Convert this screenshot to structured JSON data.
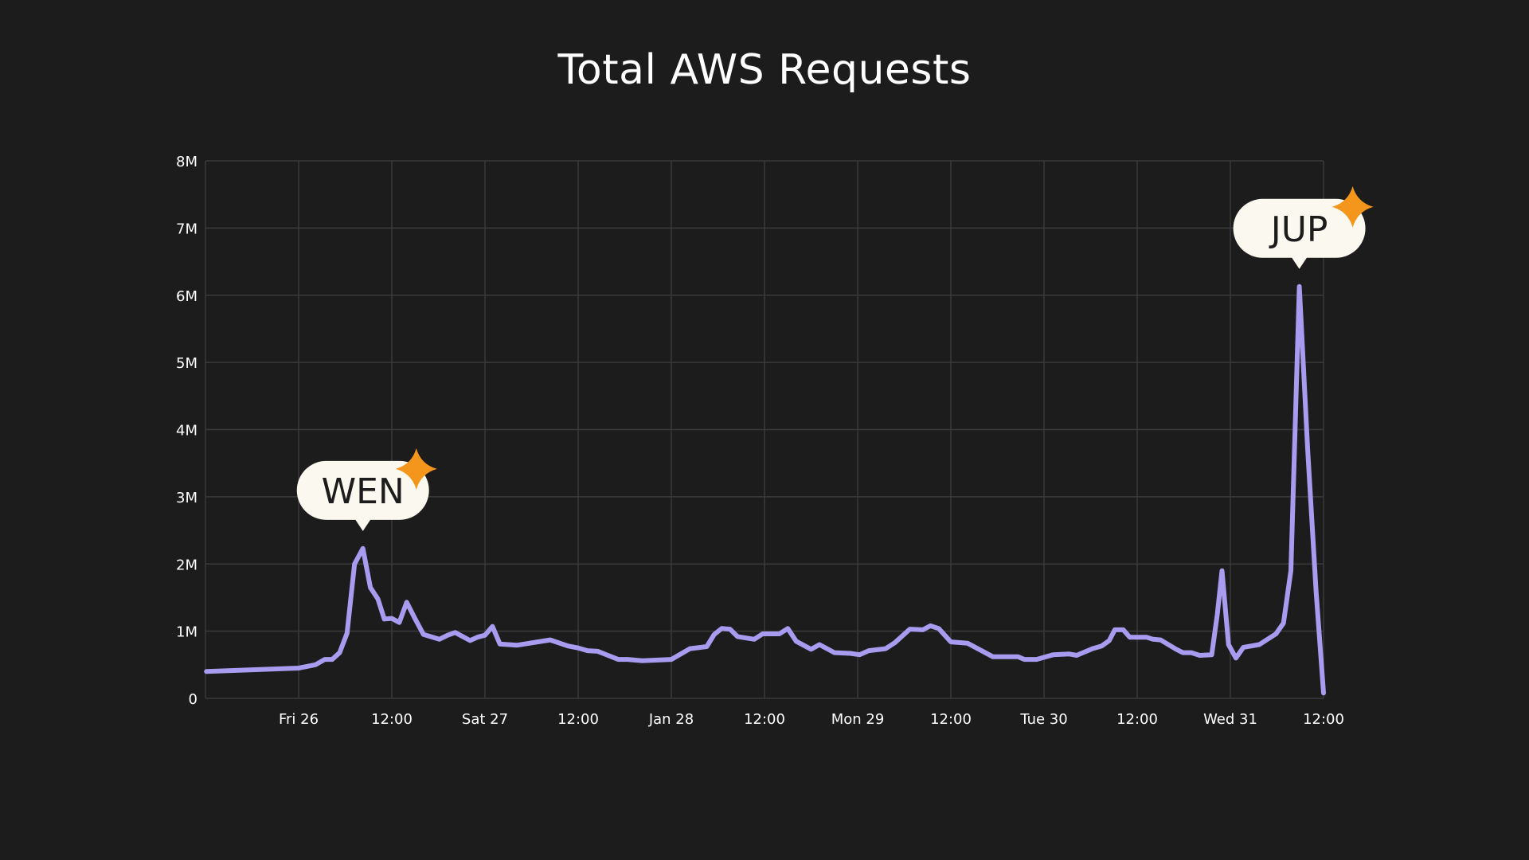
{
  "chart_data": {
    "type": "line",
    "title": "Total AWS Requests",
    "xlabel": "",
    "ylabel": "",
    "ylim": [
      0,
      8000000
    ],
    "xlim": [
      0,
      120
    ],
    "grid": true,
    "colors": {
      "background": "#1c1c1c",
      "line": "#a89cf0",
      "grid": "#3a3a3a",
      "callout_bg": "#fbf8ef",
      "sparkle": "#f5961c"
    },
    "y_ticks": [
      {
        "value": 0,
        "label": "0"
      },
      {
        "value": 1000000,
        "label": "1M"
      },
      {
        "value": 2000000,
        "label": "2M"
      },
      {
        "value": 3000000,
        "label": "3M"
      },
      {
        "value": 4000000,
        "label": "4M"
      },
      {
        "value": 5000000,
        "label": "5M"
      },
      {
        "value": 6000000,
        "label": "6M"
      },
      {
        "value": 7000000,
        "label": "7M"
      },
      {
        "value": 8000000,
        "label": "8M"
      }
    ],
    "x_ticks": [
      {
        "value": 10,
        "label": "Fri 26"
      },
      {
        "value": 20,
        "label": "12:00"
      },
      {
        "value": 30,
        "label": "Sat 27"
      },
      {
        "value": 40,
        "label": "12:00"
      },
      {
        "value": 50,
        "label": "Jan 28"
      },
      {
        "value": 60,
        "label": "12:00"
      },
      {
        "value": 70,
        "label": "Mon 29"
      },
      {
        "value": 80,
        "label": "12:00"
      },
      {
        "value": 90,
        "label": "Tue 30"
      },
      {
        "value": 100,
        "label": "12:00"
      },
      {
        "value": 110,
        "label": "Wed 31"
      },
      {
        "value": 120,
        "label": "12:00"
      }
    ],
    "series": [
      {
        "name": "Total AWS Requests",
        "points": [
          [
            0.1,
            400000
          ],
          [
            10.0,
            450000
          ],
          [
            11.8,
            500000
          ],
          [
            12.8,
            580000
          ],
          [
            13.6,
            580000
          ],
          [
            14.4,
            680000
          ],
          [
            15.2,
            970000
          ],
          [
            16.0,
            2000000
          ],
          [
            16.9,
            2230000
          ],
          [
            17.7,
            1650000
          ],
          [
            18.5,
            1480000
          ],
          [
            19.2,
            1180000
          ],
          [
            20.0,
            1190000
          ],
          [
            20.8,
            1130000
          ],
          [
            21.6,
            1430000
          ],
          [
            22.4,
            1210000
          ],
          [
            23.4,
            950000
          ],
          [
            25.1,
            880000
          ],
          [
            26.0,
            940000
          ],
          [
            26.8,
            980000
          ],
          [
            28.4,
            860000
          ],
          [
            29.2,
            910000
          ],
          [
            30.0,
            940000
          ],
          [
            30.8,
            1070000
          ],
          [
            31.6,
            810000
          ],
          [
            33.4,
            790000
          ],
          [
            37.0,
            870000
          ],
          [
            38.9,
            780000
          ],
          [
            40.0,
            750000
          ],
          [
            41.0,
            710000
          ],
          [
            42.1,
            700000
          ],
          [
            44.3,
            580000
          ],
          [
            45.3,
            580000
          ],
          [
            46.9,
            560000
          ],
          [
            50.0,
            580000
          ],
          [
            52.0,
            740000
          ],
          [
            53.8,
            770000
          ],
          [
            54.6,
            950000
          ],
          [
            55.4,
            1040000
          ],
          [
            56.3,
            1030000
          ],
          [
            57.1,
            920000
          ],
          [
            58.9,
            880000
          ],
          [
            59.8,
            960000
          ],
          [
            61.6,
            960000
          ],
          [
            62.5,
            1040000
          ],
          [
            63.4,
            850000
          ],
          [
            65.0,
            730000
          ],
          [
            65.9,
            800000
          ],
          [
            67.5,
            680000
          ],
          [
            69.2,
            670000
          ],
          [
            70.2,
            650000
          ],
          [
            71.2,
            710000
          ],
          [
            73.0,
            740000
          ],
          [
            74.0,
            830000
          ],
          [
            75.6,
            1030000
          ],
          [
            77.0,
            1020000
          ],
          [
            77.8,
            1080000
          ],
          [
            78.7,
            1040000
          ],
          [
            80.0,
            840000
          ],
          [
            81.8,
            820000
          ],
          [
            84.5,
            620000
          ],
          [
            87.2,
            620000
          ],
          [
            87.9,
            580000
          ],
          [
            89.2,
            580000
          ],
          [
            91.0,
            650000
          ],
          [
            92.7,
            660000
          ],
          [
            93.5,
            640000
          ],
          [
            95.2,
            740000
          ],
          [
            96.2,
            780000
          ],
          [
            97.0,
            860000
          ],
          [
            97.6,
            1020000
          ],
          [
            98.5,
            1020000
          ],
          [
            99.2,
            910000
          ],
          [
            100.0,
            910000
          ],
          [
            101.0,
            910000
          ],
          [
            101.7,
            880000
          ],
          [
            102.5,
            870000
          ],
          [
            104.2,
            730000
          ],
          [
            104.9,
            680000
          ],
          [
            105.8,
            680000
          ],
          [
            106.7,
            640000
          ],
          [
            108.0,
            650000
          ],
          [
            108.6,
            1250000
          ],
          [
            109.1,
            1900000
          ],
          [
            109.8,
            800000
          ],
          [
            110.6,
            600000
          ],
          [
            111.4,
            760000
          ],
          [
            113.1,
            800000
          ],
          [
            114.9,
            960000
          ],
          [
            115.7,
            1120000
          ],
          [
            116.5,
            1900000
          ],
          [
            117.4,
            6130000
          ],
          [
            118.3,
            3700000
          ],
          [
            119.2,
            1600000
          ],
          [
            120.0,
            80000
          ]
        ]
      }
    ],
    "annotations": [
      {
        "label": "WEN",
        "x": 16.9,
        "y": 2230000
      },
      {
        "label": "JUP",
        "x": 117.4,
        "y": 6130000
      }
    ]
  }
}
